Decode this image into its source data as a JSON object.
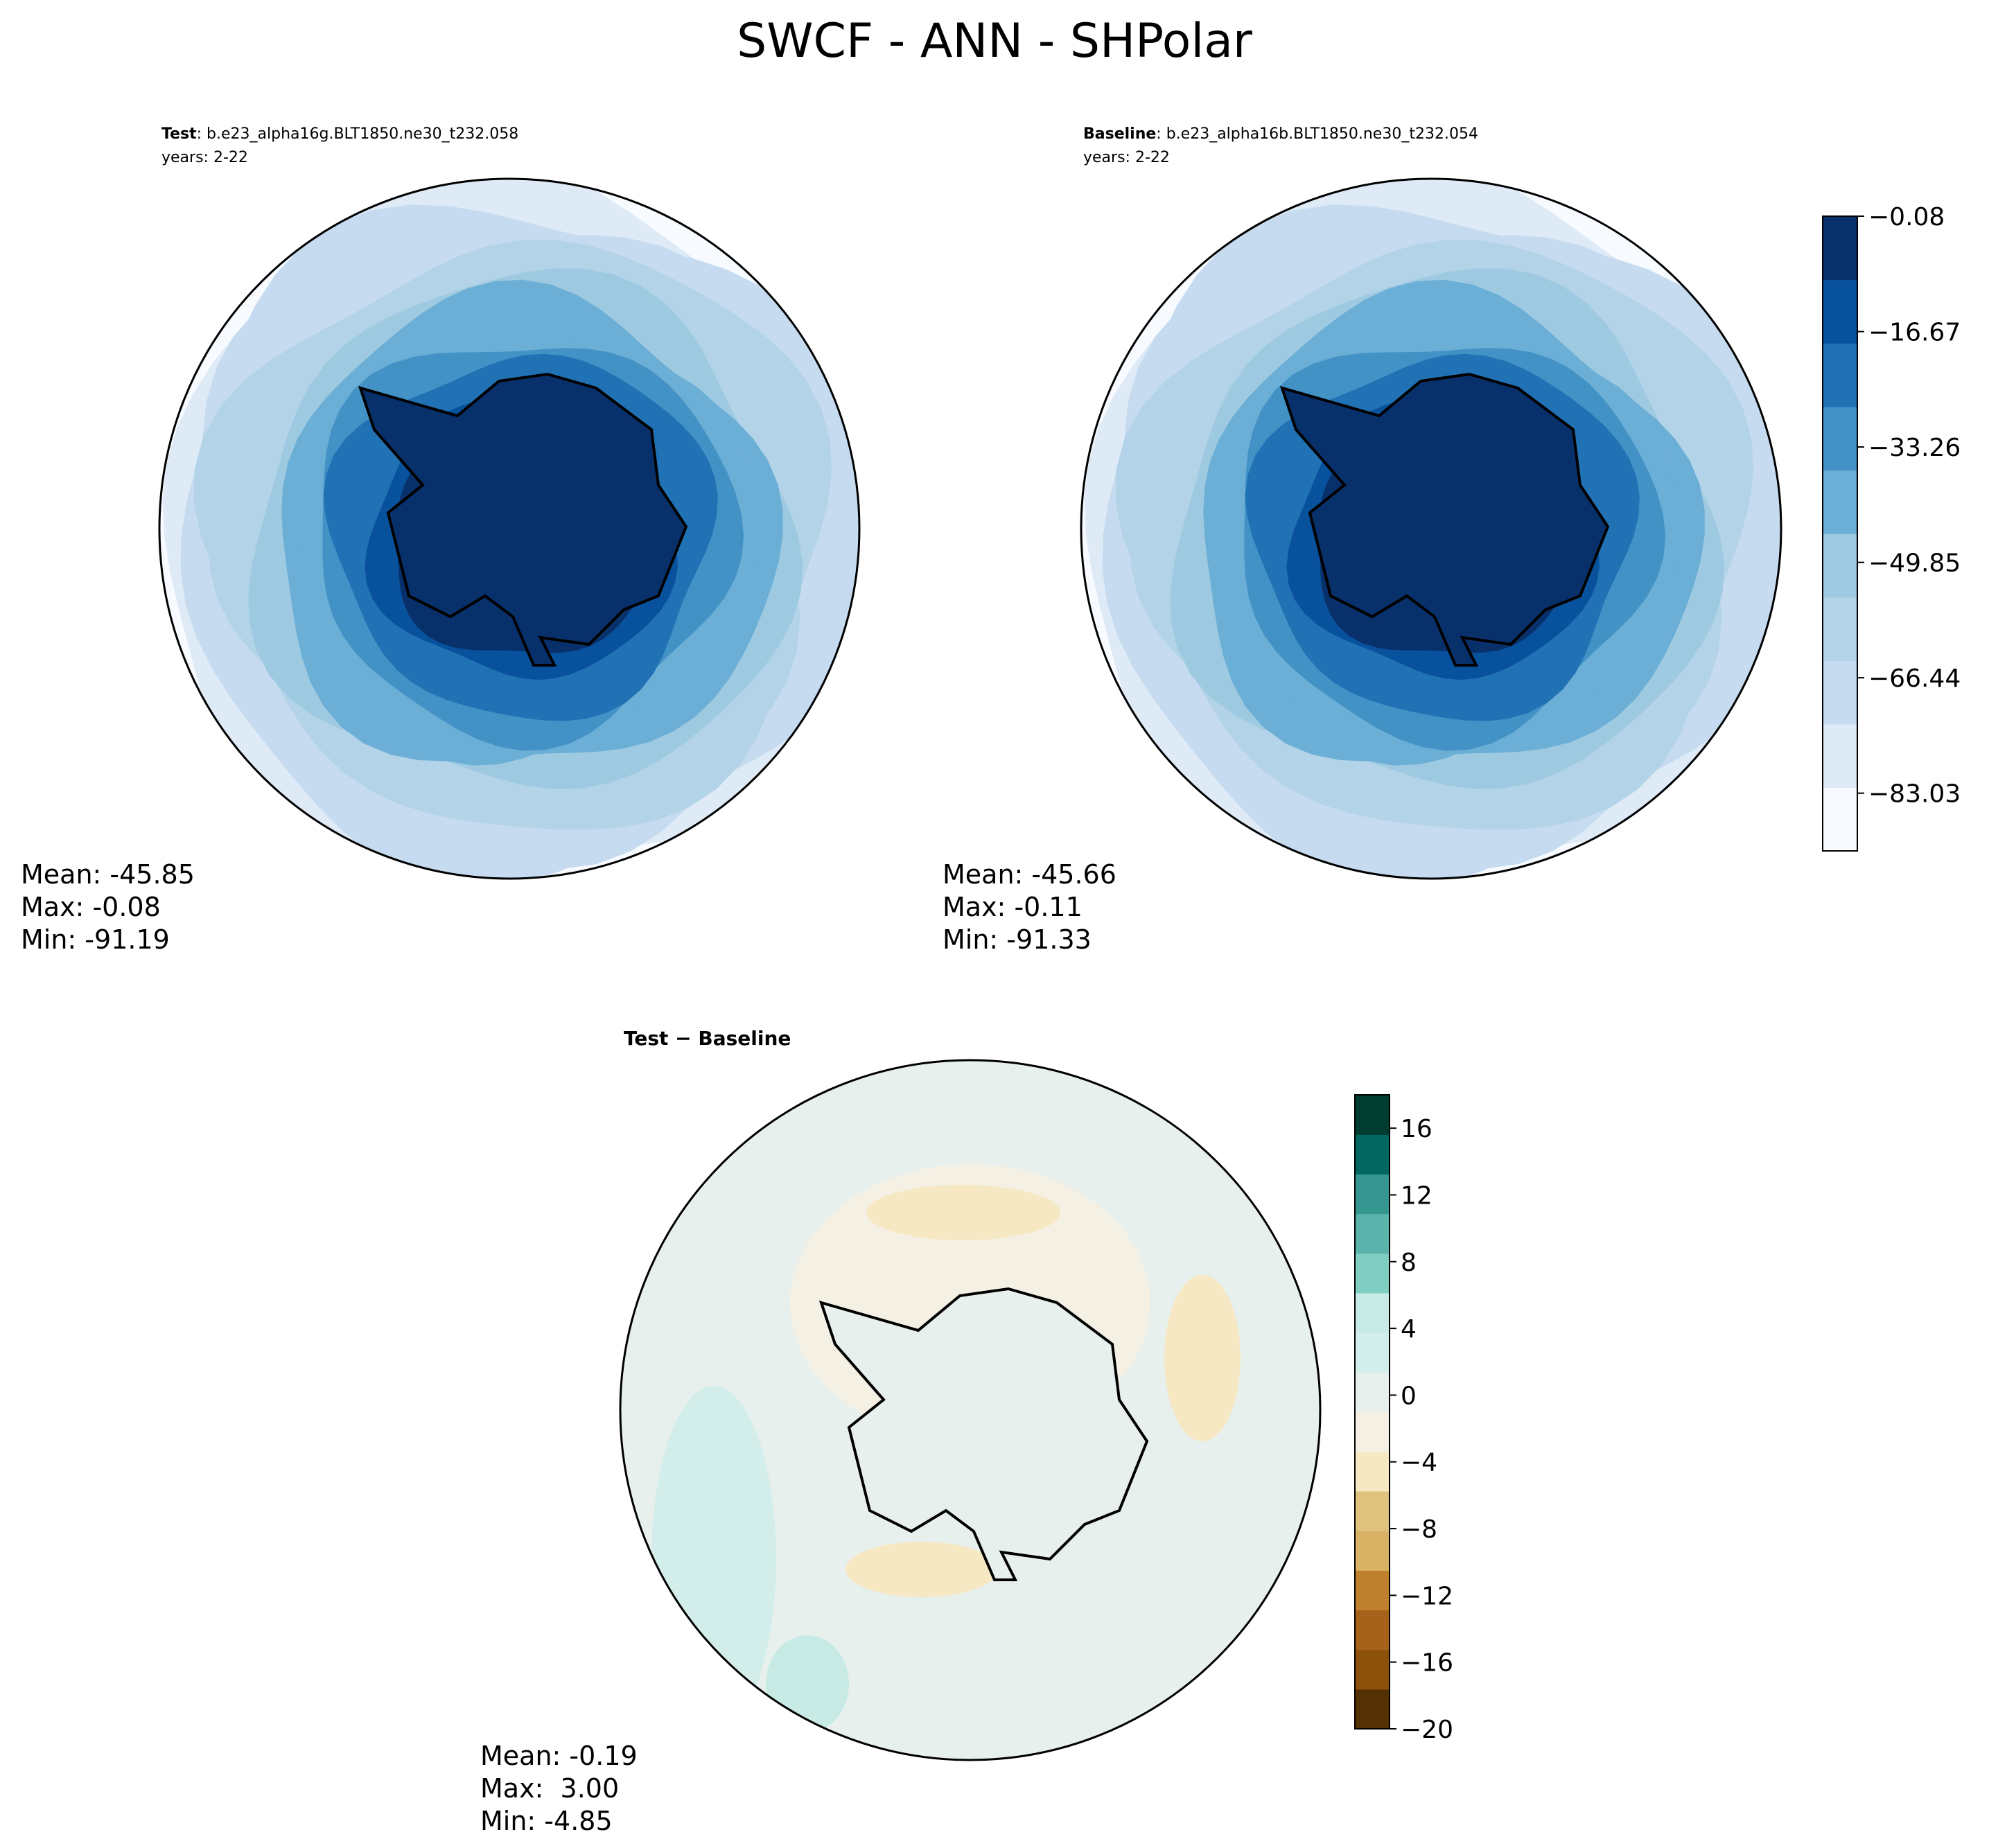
{
  "figure": {
    "title": "SWCF - ANN - SHPolar"
  },
  "chart_data": [
    {
      "type": "contour-map",
      "name": "test",
      "subtitle_bold": "Test",
      "subtitle_rest": ": b.e23_alpha16g.BLT1850.ne30_t232.058",
      "years": "years: 2-22",
      "stats": {
        "mean": "Mean: -45.85",
        "max": "Max: -0.08",
        "min": "Min: -91.19"
      },
      "ring_values": [
        -90,
        -75,
        -69,
        -66,
        -60,
        -55,
        -50,
        -44,
        -38,
        -33,
        -27,
        -22,
        -16,
        -8
      ]
    },
    {
      "type": "contour-map",
      "name": "baseline",
      "subtitle_bold": "Baseline",
      "subtitle_rest": ": b.e23_alpha16b.BLT1850.ne30_t232.054",
      "years": "years: 2-22",
      "stats": {
        "mean": "Mean: -45.66",
        "max": "Max: -0.11",
        "min": "Min: -91.33"
      },
      "ring_values": [
        -90,
        -76,
        -69,
        -66,
        -60,
        -55,
        -50,
        -44,
        -38,
        -33,
        -27,
        -22,
        -16,
        -8
      ],
      "colorbar": {
        "ticks": [
          "−0.08",
          "−16.67",
          "−33.26",
          "−49.85",
          "−66.44",
          "−83.03"
        ],
        "tick_values": [
          -0.08,
          -16.67,
          -33.26,
          -49.85,
          -66.44,
          -83.03
        ],
        "range": [
          -91.33,
          -0.08
        ],
        "colors": [
          "#f7fbff",
          "#deebf7",
          "#c6dbef",
          "#b2d3e8",
          "#9ecae1",
          "#6baed6",
          "#4292c6",
          "#2171b5",
          "#08519c",
          "#08306b"
        ]
      }
    },
    {
      "type": "contour-map",
      "name": "difference",
      "subtitle_bold": "Test − Baseline",
      "stats": {
        "mean": "Mean: -0.19",
        "max": "Max:  3.00",
        "min": "Min: -4.85"
      },
      "colorbar": {
        "ticks": [
          "16",
          "12",
          "8",
          "4",
          "0",
          "−4",
          "−8",
          "−12",
          "−16",
          "−20"
        ],
        "tick_values": [
          16,
          12,
          8,
          4,
          0,
          -4,
          -8,
          -12,
          -16,
          -20
        ],
        "range": [
          -20,
          18
        ],
        "colors": [
          "#543005",
          "#8c510a",
          "#a6611a",
          "#bf812d",
          "#d8b365",
          "#dfc27d",
          "#f6e8c3",
          "#f5f0e4",
          "#e8f0ee",
          "#d3eeea",
          "#c7eae5",
          "#80cdc1",
          "#5ab4ac",
          "#35978f",
          "#01665e",
          "#003c30"
        ]
      }
    }
  ]
}
